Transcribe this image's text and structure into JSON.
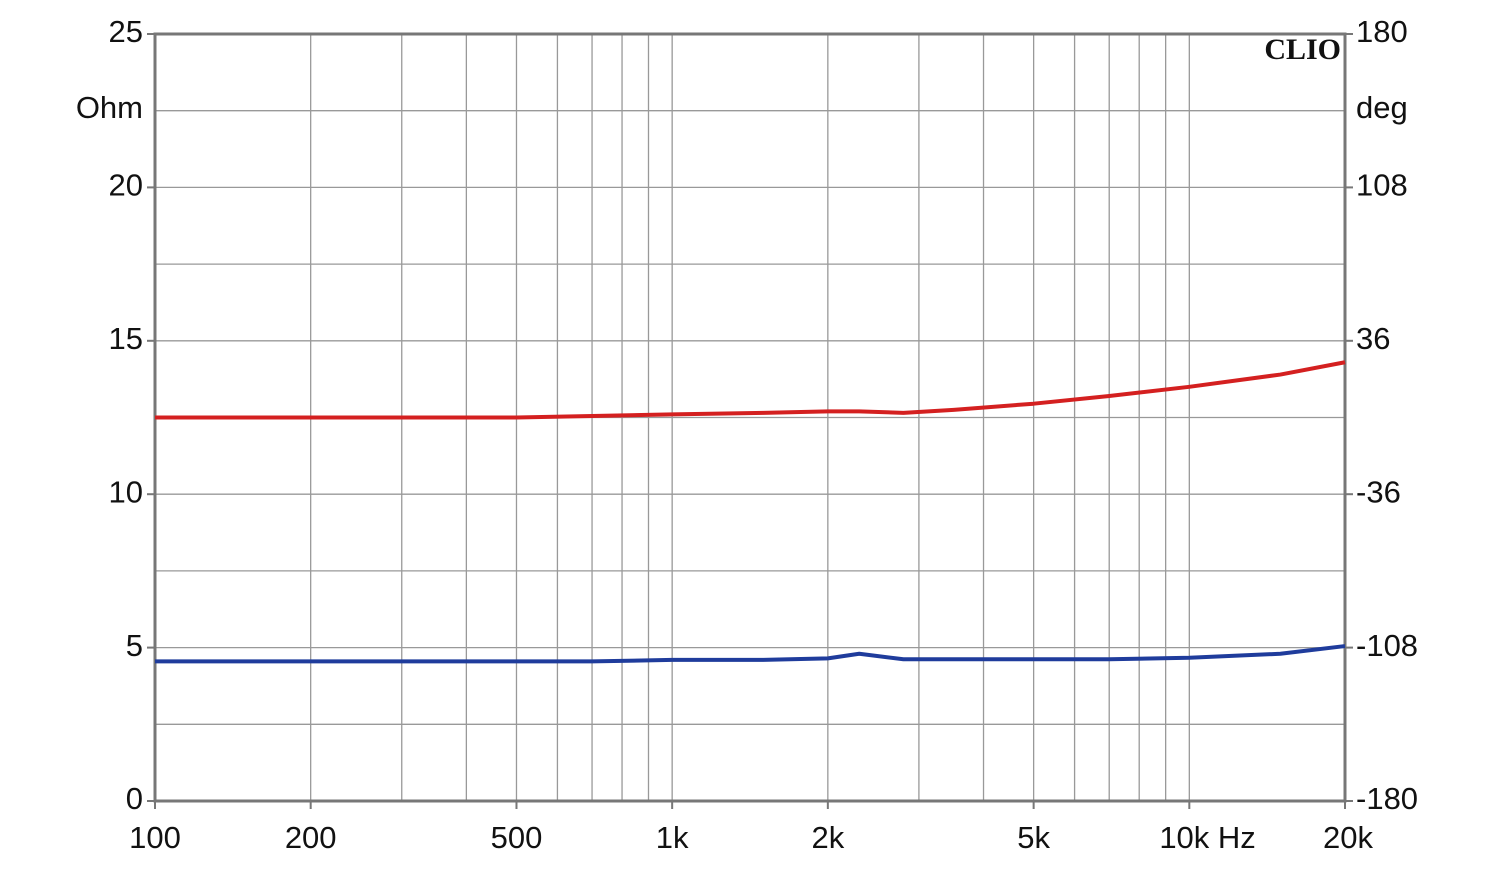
{
  "chart_data": {
    "type": "line",
    "brand": "CLIO",
    "y_unit": "Ohm",
    "y2_unit": "deg",
    "x": [
      100,
      200,
      500,
      700,
      1000,
      1500,
      2000,
      2300,
      2800,
      3500,
      5000,
      7000,
      10000,
      15000,
      20000
    ],
    "series": [
      {
        "color": "#d42020",
        "values": [
          12.5,
          12.5,
          12.5,
          12.55,
          12.6,
          12.65,
          12.7,
          12.7,
          12.65,
          12.75,
          12.95,
          13.2,
          13.5,
          13.9,
          14.3
        ]
      },
      {
        "color": "#1f3c9c",
        "values": [
          4.55,
          4.55,
          4.55,
          4.55,
          4.6,
          4.6,
          4.65,
          4.8,
          4.62,
          4.62,
          4.62,
          4.62,
          4.67,
          4.8,
          5.05
        ]
      }
    ],
    "xlog": true,
    "xlim": [
      100,
      20000
    ],
    "xticks": [
      100,
      200,
      500,
      {
        "value": 1000,
        "label": "1k"
      },
      {
        "value": 2000,
        "label": "2k"
      },
      {
        "value": 5000,
        "label": "5k"
      },
      {
        "value": 10000,
        "label": "10k Hz"
      },
      {
        "value": 20000,
        "label": "20k"
      }
    ],
    "x_grid": [
      100,
      200,
      300,
      400,
      500,
      600,
      700,
      800,
      900,
      1000,
      2000,
      3000,
      4000,
      5000,
      6000,
      7000,
      8000,
      9000,
      10000,
      20000
    ],
    "ylim": [
      0,
      25
    ],
    "yticks": [
      0,
      5,
      10,
      15,
      20,
      25
    ],
    "y_grid": [
      0,
      2.5,
      5,
      7.5,
      10,
      12.5,
      15,
      17.5,
      20,
      22.5,
      25
    ],
    "y2lim": [
      -180,
      180
    ],
    "y2ticks": [
      -180,
      -108,
      -36,
      36,
      108,
      180
    ],
    "grid": true
  }
}
